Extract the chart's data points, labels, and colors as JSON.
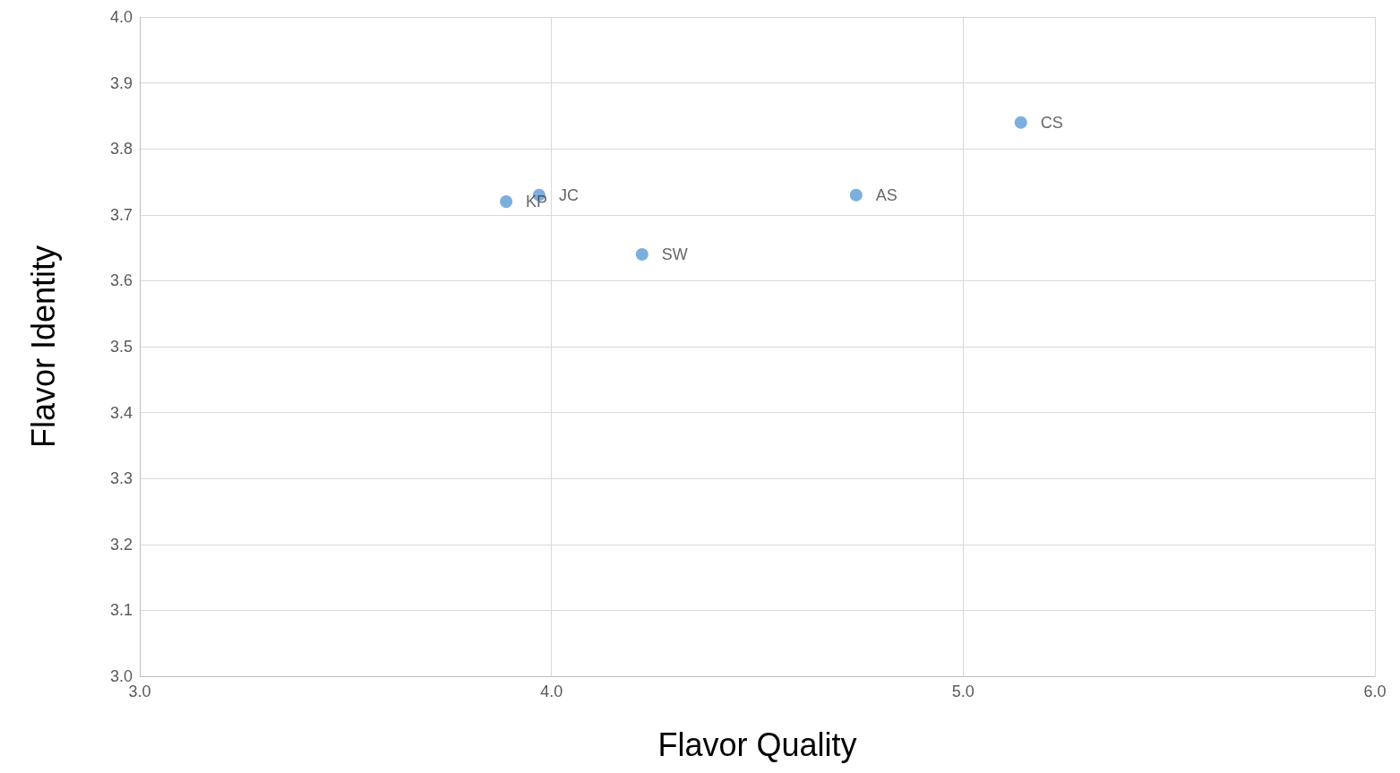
{
  "chart_data": {
    "type": "scatter",
    "xlabel": "Flavor Quality",
    "ylabel": "Flavor Identity",
    "x": [
      3.89,
      3.97,
      4.22,
      4.74,
      5.14
    ],
    "series": [
      {
        "color": "#5b9bd5",
        "values": [
          3.72,
          3.73,
          3.64,
          3.73,
          3.84
        ]
      }
    ],
    "annotations": [
      {
        "text": "KP",
        "x": 3.89,
        "y": 3.72
      },
      {
        "text": "JC",
        "x": 3.97,
        "y": 3.73
      },
      {
        "text": "SW",
        "x": 4.22,
        "y": 3.64
      },
      {
        "text": "AS",
        "x": 4.74,
        "y": 3.73
      },
      {
        "text": "CS",
        "x": 5.14,
        "y": 3.84
      }
    ],
    "xlim": [
      3.0,
      6.0
    ],
    "xticks": [
      {
        "value": 3,
        "label": "3.0"
      },
      {
        "value": 4,
        "label": "4.0"
      },
      {
        "value": 5,
        "label": "5.0"
      },
      {
        "value": 6,
        "label": "6.0"
      }
    ],
    "ylim": [
      3.0,
      4.0
    ],
    "yticks": [
      {
        "value": 3,
        "label": "3.0"
      },
      {
        "value": 3.1,
        "label": "3.1"
      },
      {
        "value": 3.2,
        "label": "3.2"
      },
      {
        "value": 3.3,
        "label": "3.3"
      },
      {
        "value": 3.4,
        "label": "3.4"
      },
      {
        "value": 3.5,
        "label": "3.5"
      },
      {
        "value": 3.6,
        "label": "3.6"
      },
      {
        "value": 3.7,
        "label": "3.7"
      },
      {
        "value": 3.8,
        "label": "3.8"
      },
      {
        "value": 3.9,
        "label": "3.9"
      },
      {
        "value": 4,
        "label": "4.0"
      }
    ],
    "grid": true,
    "marker": "circle"
  }
}
